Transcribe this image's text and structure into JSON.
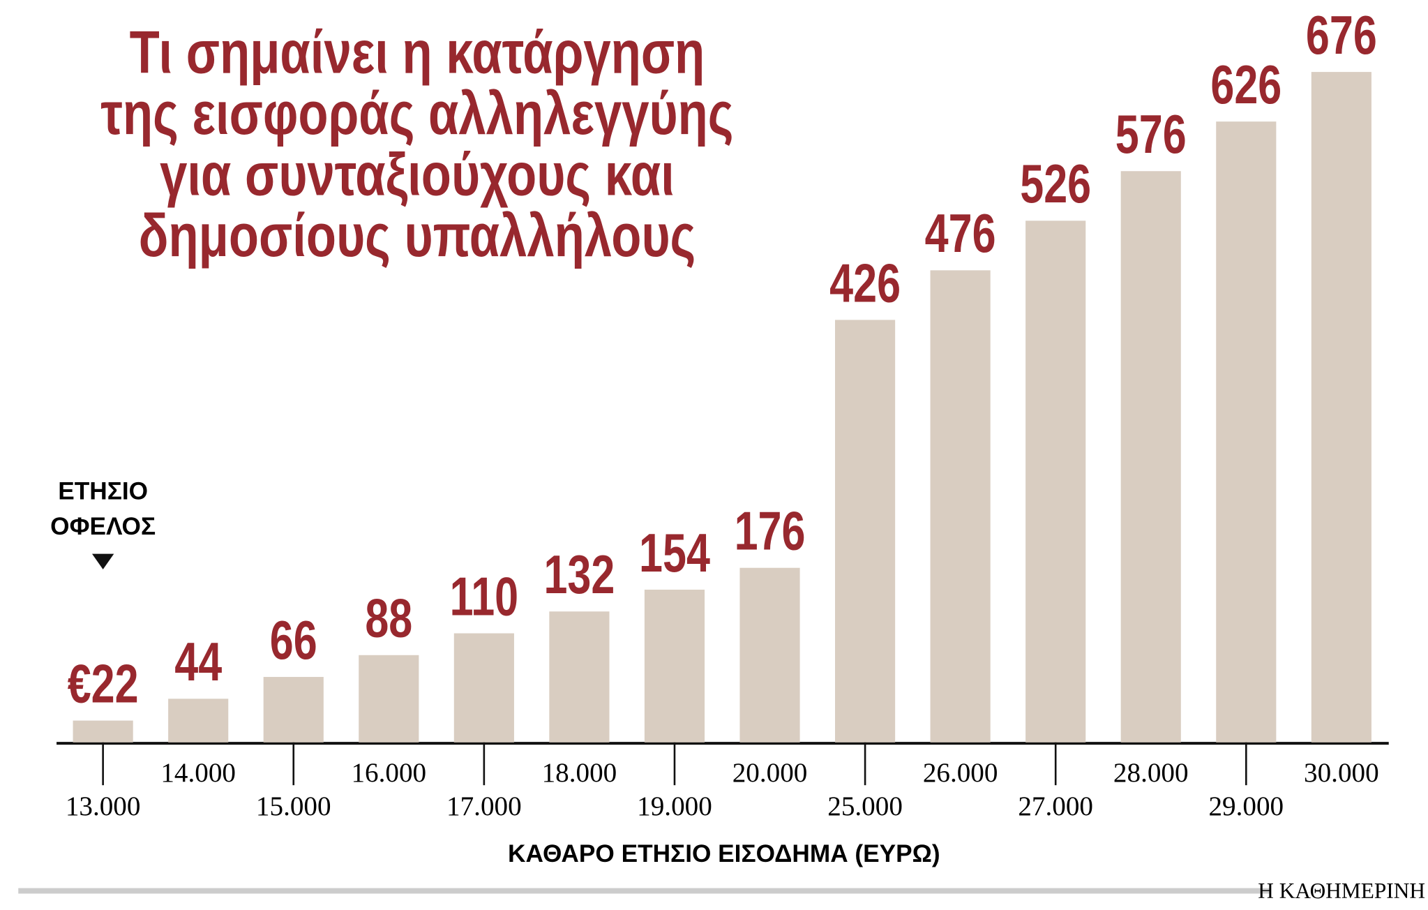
{
  "chart_data": {
    "type": "bar",
    "title": [
      "Τι σημαίνει η κατάργηση",
      "της εισφοράς αλληλεγγύης",
      "για συνταξιούχους και",
      "δημοσίους υπαλλήλους"
    ],
    "annotation": [
      "ΕΤΗΣΙΟ",
      "ΟΦΕΛΟΣ"
    ],
    "categories": [
      "13.000",
      "14.000",
      "15.000",
      "16.000",
      "17.000",
      "18.000",
      "19.000",
      "20.000",
      "25.000",
      "26.000",
      "27.000",
      "28.000",
      "29.000",
      "30.000"
    ],
    "values": [
      22,
      44,
      66,
      88,
      110,
      132,
      154,
      176,
      426,
      476,
      526,
      576,
      626,
      676
    ],
    "value_labels": [
      "€22",
      "44",
      "66",
      "88",
      "110",
      "132",
      "154",
      "176",
      "426",
      "476",
      "526",
      "576",
      "626",
      "676"
    ],
    "color": "#d9cdc1",
    "label_color": "#98282e",
    "x_label": "ΚΑΘΑΡΟ ΕΤΗΣΙΟ ΕΙΣΟΔΗΜΑ (ΕΥΡΩ)",
    "source": "Η ΚΑΘΗΜΕΡΙΝΗ"
  }
}
